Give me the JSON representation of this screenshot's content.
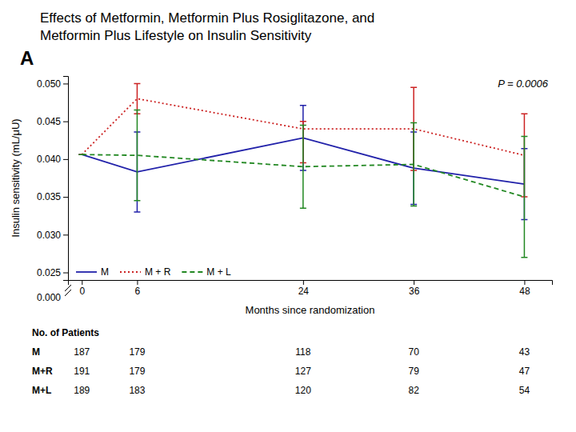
{
  "chart_data": {
    "type": "line",
    "title": [
      "Effects of Metformin, Metformin Plus Rosiglitazone, and",
      "Metformin Plus Lifestyle on Insulin Sensitivity"
    ],
    "panel_label": "A",
    "x_label": "Months since randomization",
    "y_label": "Insulin sensitivity (mL/μU)",
    "annotations": [
      {
        "text": "P = 0.0006"
      }
    ],
    "x": [
      0,
      6,
      24,
      36,
      48
    ],
    "series": [
      {
        "name": "M",
        "color": "#2222aa",
        "line_style": "solid",
        "values": [
          0.0406,
          0.0383,
          0.0428,
          0.0388,
          0.0367
        ],
        "error_low": [
          0.0,
          0.0053,
          0.0043,
          0.0048,
          0.0047
        ],
        "error_high": [
          0.0,
          0.0053,
          0.0043,
          0.0048,
          0.0047
        ]
      },
      {
        "name": "M + R",
        "color": "#cc2222",
        "line_style": "dotted",
        "values": [
          0.0406,
          0.048,
          0.044,
          0.044,
          0.0405
        ],
        "error_low": [
          0.0,
          0.002,
          0.0045,
          0.0055,
          0.0055
        ],
        "error_high": [
          0.0,
          0.002,
          0.001,
          0.0055,
          0.0055
        ]
      },
      {
        "name": "M + L",
        "color": "#228822",
        "line_style": "dashed",
        "values": [
          0.0406,
          0.0405,
          0.039,
          0.0393,
          0.035
        ],
        "error_low": [
          0.0,
          0.006,
          0.0055,
          0.0055,
          0.008
        ],
        "error_high": [
          0.0,
          0.006,
          0.0055,
          0.0055,
          0.008
        ]
      }
    ],
    "xlim": [
      -1.5,
      51
    ],
    "xticks": [
      0,
      6,
      24,
      36,
      48
    ],
    "ylim": [
      0.024,
      0.051
    ],
    "yticks": [
      {
        "value": 0.025,
        "label": "0.025"
      },
      {
        "value": 0.03,
        "label": "0.030"
      },
      {
        "value": 0.035,
        "label": "0.035"
      },
      {
        "value": 0.04,
        "label": "0.040"
      },
      {
        "value": 0.045,
        "label": "0.045"
      },
      {
        "value": 0.05,
        "label": "0.050"
      }
    ],
    "y_break": {
      "value": 0.0,
      "label": "0.000"
    },
    "grid": false,
    "legend": "lower left",
    "table": {
      "title": "No. of Patients",
      "rows": [
        "M",
        "M+R",
        "M+L"
      ],
      "columns": [
        [
          187,
          191,
          189
        ],
        [
          179,
          179,
          183
        ],
        [
          118,
          127,
          120
        ],
        [
          70,
          79,
          82
        ],
        [
          43,
          47,
          54
        ]
      ]
    }
  }
}
